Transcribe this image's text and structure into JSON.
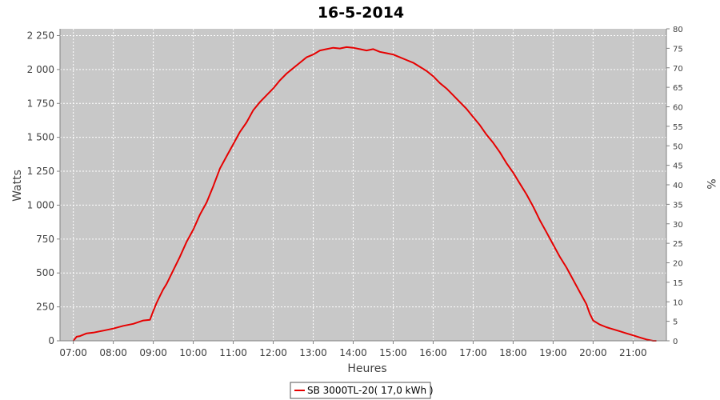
{
  "chart_data": {
    "type": "line",
    "title": "16-5-2014",
    "xlabel": "Heures",
    "ylabel": "Watts",
    "y2label": "%",
    "x_ticks": [
      "07:00",
      "08:00",
      "09:00",
      "10:00",
      "11:00",
      "12:00",
      "13:00",
      "14:00",
      "15:00",
      "16:00",
      "17:00",
      "18:00",
      "19:00",
      "20:00",
      "21:00"
    ],
    "xlim": [
      "06:40",
      "21:50"
    ],
    "ylim": [
      0,
      2300
    ],
    "y_ticks": [
      0,
      250,
      500,
      750,
      1000,
      1250,
      1500,
      1750,
      2000,
      2250
    ],
    "y_tick_labels": [
      "0",
      "250",
      "500",
      "750",
      "1 000",
      "1 250",
      "1 500",
      "1 750",
      "2 000",
      "2 250"
    ],
    "y2lim": [
      0,
      80
    ],
    "y2_ticks": [
      0,
      5,
      10,
      15,
      20,
      25,
      30,
      35,
      40,
      45,
      50,
      55,
      60,
      65,
      70,
      75,
      80
    ],
    "y2_tick_labels": [
      "0",
      "5",
      "10",
      "15",
      "20",
      "25",
      "30",
      "35",
      "40",
      "45",
      "50",
      "55",
      "60",
      "65",
      "70",
      "75",
      "80"
    ],
    "grid": true,
    "legend_position": "bottom",
    "series": [
      {
        "name": "SB 3000TL-20( 17,0 kWh )",
        "color": "#e60000",
        "x": [
          "07:00",
          "07:05",
          "07:10",
          "07:20",
          "07:30",
          "07:45",
          "08:00",
          "08:15",
          "08:30",
          "08:45",
          "08:55",
          "09:00",
          "09:05",
          "09:10",
          "09:15",
          "09:20",
          "09:30",
          "09:40",
          "09:50",
          "10:00",
          "10:10",
          "10:20",
          "10:30",
          "10:40",
          "10:50",
          "11:00",
          "11:10",
          "11:20",
          "11:30",
          "11:40",
          "11:50",
          "12:00",
          "12:10",
          "12:20",
          "12:30",
          "12:40",
          "12:50",
          "13:00",
          "13:10",
          "13:20",
          "13:30",
          "13:40",
          "13:50",
          "14:00",
          "14:10",
          "14:20",
          "14:30",
          "14:40",
          "14:50",
          "15:00",
          "15:10",
          "15:20",
          "15:30",
          "15:40",
          "15:50",
          "16:00",
          "16:10",
          "16:20",
          "16:30",
          "16:40",
          "16:50",
          "17:00",
          "17:10",
          "17:20",
          "17:30",
          "17:40",
          "17:50",
          "18:00",
          "18:10",
          "18:20",
          "18:30",
          "18:40",
          "18:50",
          "19:00",
          "19:10",
          "19:20",
          "19:30",
          "19:40",
          "19:50",
          "19:55",
          "20:00",
          "20:10",
          "20:20",
          "20:30",
          "20:40",
          "20:50",
          "21:00",
          "21:10",
          "21:20",
          "21:30",
          "21:35"
        ],
        "values": [
          0,
          30,
          35,
          55,
          60,
          75,
          90,
          110,
          125,
          150,
          155,
          220,
          280,
          330,
          380,
          420,
          520,
          620,
          730,
          820,
          930,
          1020,
          1140,
          1270,
          1360,
          1450,
          1540,
          1610,
          1700,
          1760,
          1810,
          1860,
          1920,
          1970,
          2010,
          2050,
          2090,
          2110,
          2140,
          2150,
          2160,
          2155,
          2165,
          2160,
          2150,
          2140,
          2150,
          2130,
          2120,
          2110,
          2090,
          2070,
          2050,
          2020,
          1990,
          1950,
          1900,
          1860,
          1810,
          1760,
          1710,
          1650,
          1590,
          1520,
          1460,
          1390,
          1310,
          1240,
          1160,
          1080,
          990,
          890,
          800,
          710,
          620,
          540,
          450,
          360,
          270,
          200,
          150,
          120,
          100,
          85,
          70,
          55,
          40,
          25,
          10,
          0,
          0
        ]
      }
    ]
  }
}
